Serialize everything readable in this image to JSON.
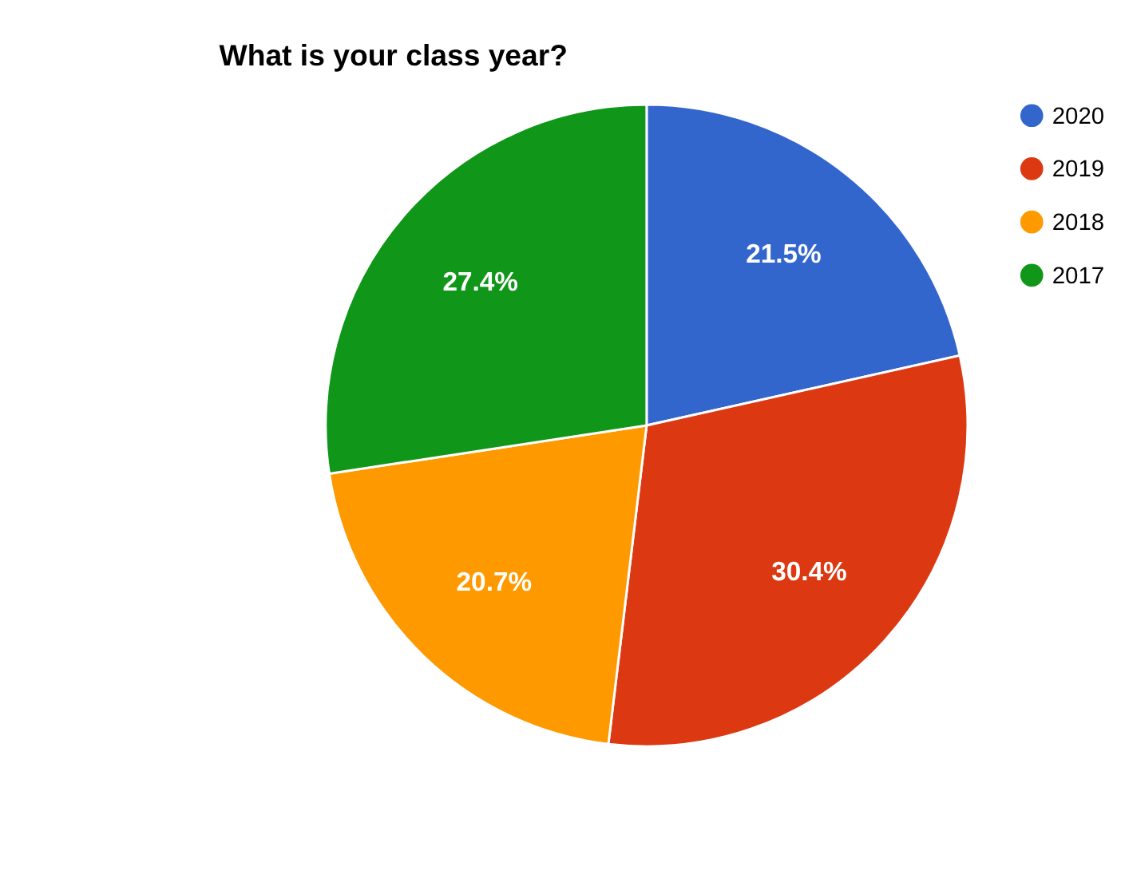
{
  "chart_data": {
    "type": "pie",
    "title": "What is your class year?",
    "categories": [
      "2020",
      "2019",
      "2018",
      "2017"
    ],
    "values": [
      21.5,
      30.4,
      20.7,
      27.4
    ],
    "colors": [
      "#3366cc",
      "#dc3912",
      "#ff9900",
      "#109618"
    ],
    "value_labels": [
      "21.5%",
      "30.4%",
      "20.7%",
      "27.4%"
    ],
    "legend": "top right"
  }
}
